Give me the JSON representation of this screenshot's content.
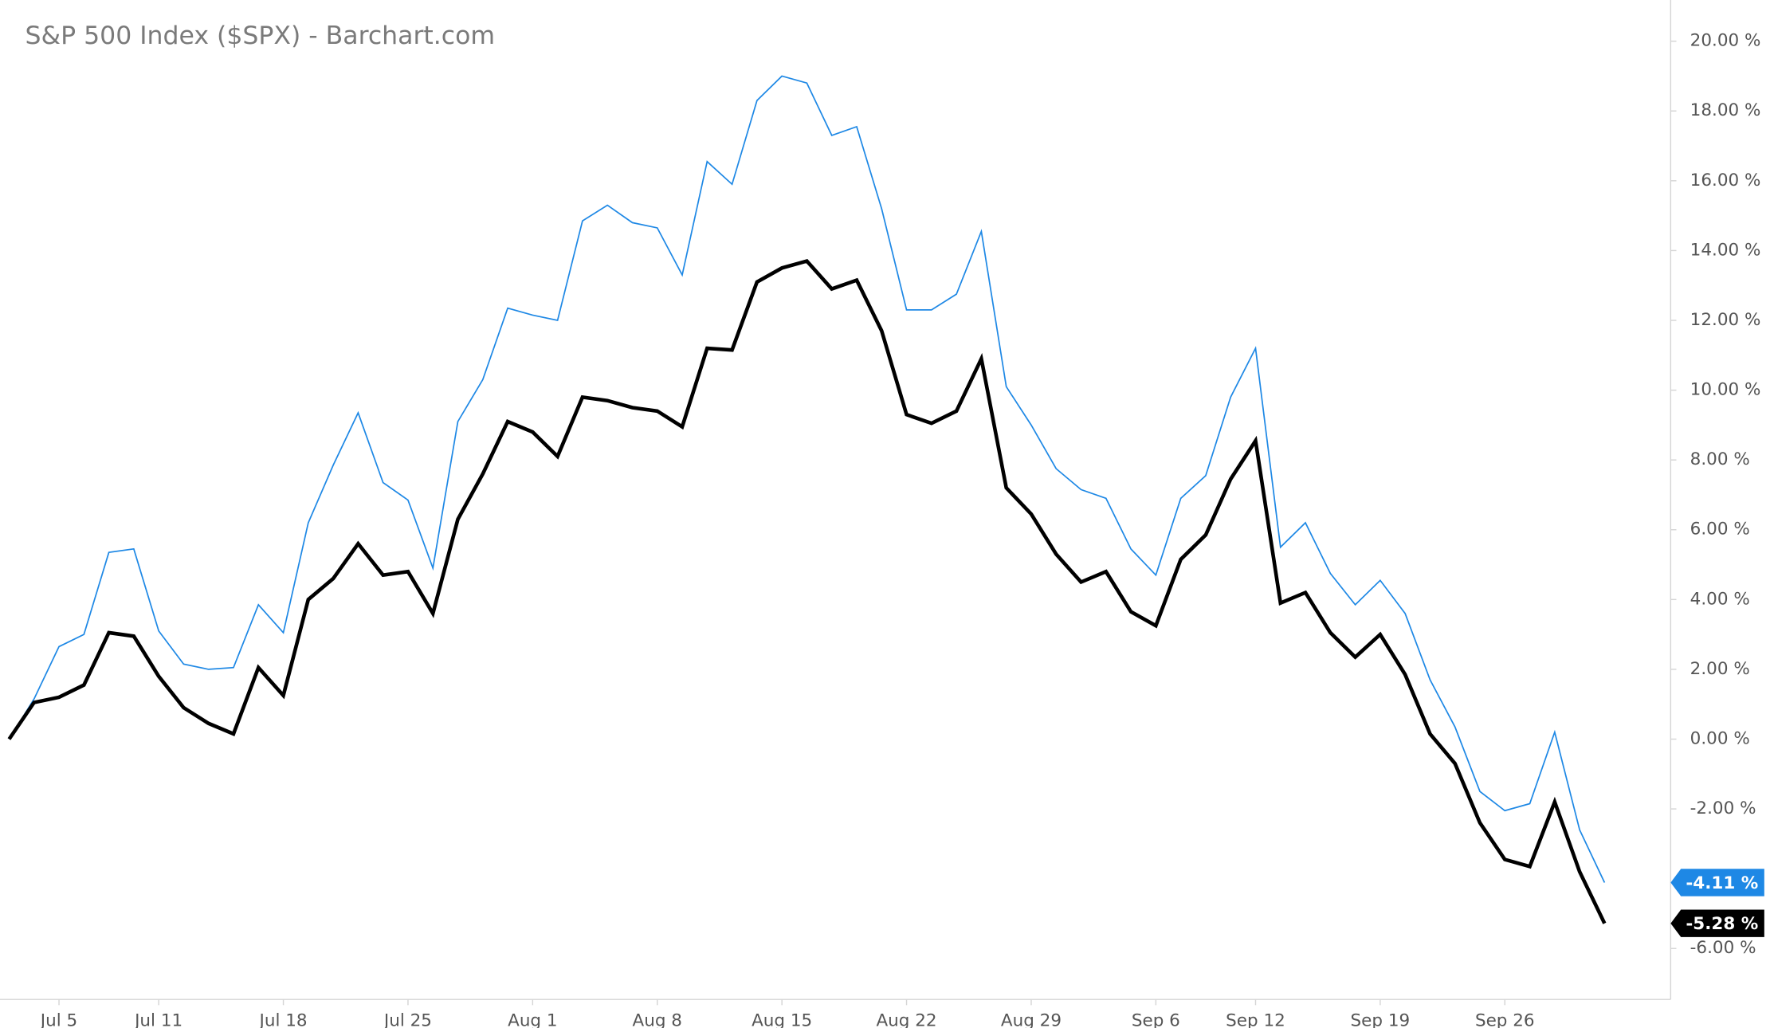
{
  "chart_data": {
    "type": "line",
    "title": "S&P 500 Index ($SPX) - Barchart.com",
    "categories": [
      null,
      null,
      "Jul 5",
      null,
      null,
      null,
      "Jul 11",
      null,
      null,
      null,
      null,
      "Jul 18",
      null,
      null,
      null,
      null,
      "Jul 25",
      null,
      null,
      null,
      null,
      "Aug 1",
      null,
      null,
      null,
      null,
      "Aug 8",
      null,
      null,
      null,
      null,
      "Aug 15",
      null,
      null,
      null,
      null,
      "Aug 22",
      null,
      null,
      null,
      null,
      "Aug 29",
      null,
      null,
      null,
      null,
      "Sep 6",
      null,
      null,
      null,
      "Sep 12",
      null,
      null,
      null,
      null,
      "Sep 19",
      null,
      null,
      null,
      null,
      "Sep 26",
      null,
      null,
      null,
      null
    ],
    "series": [
      {
        "color": "#1e88e5",
        "values": [
          0,
          1.15,
          2.65,
          3.0,
          5.35,
          5.45,
          3.1,
          2.15,
          2.0,
          2.05,
          3.85,
          3.05,
          6.2,
          7.85,
          9.35,
          7.35,
          6.85,
          4.9,
          9.1,
          10.3,
          12.35,
          12.15,
          12.0,
          14.85,
          15.3,
          14.8,
          14.65,
          13.3,
          16.55,
          15.9,
          18.3,
          19.0,
          18.8,
          17.3,
          17.55,
          15.2,
          12.3,
          12.3,
          12.75,
          14.55,
          10.1,
          9.0,
          7.75,
          7.15,
          6.9,
          5.45,
          4.7,
          6.9,
          7.55,
          9.8,
          11.2,
          5.5,
          6.2,
          4.75,
          3.85,
          4.55,
          3.6,
          1.7,
          0.35,
          -1.5,
          -2.05,
          -1.85,
          0.2,
          -2.6,
          -4.11
        ],
        "value_labels": [
          null,
          null,
          null,
          null,
          null,
          null,
          null,
          null,
          null,
          null,
          null,
          null,
          null,
          null,
          null,
          null,
          null,
          null,
          null,
          null,
          null,
          null,
          null,
          null,
          null,
          null,
          null,
          null,
          null,
          null,
          null,
          null,
          null,
          null,
          null,
          null,
          null,
          null,
          null,
          null,
          null,
          null,
          null,
          null,
          null,
          null,
          null,
          null,
          null,
          null,
          null,
          null,
          null,
          null,
          null,
          null,
          null,
          null,
          null,
          null,
          null,
          null,
          null,
          null,
          "-4.11 %"
        ]
      },
      {
        "color": "#000000",
        "values": [
          0,
          1.05,
          1.2,
          1.55,
          3.05,
          2.95,
          1.8,
          0.9,
          0.45,
          0.15,
          2.05,
          1.25,
          4.0,
          4.6,
          5.6,
          4.7,
          4.8,
          3.6,
          6.3,
          7.6,
          9.1,
          8.8,
          8.1,
          9.8,
          9.7,
          9.5,
          9.4,
          8.95,
          11.2,
          11.15,
          13.1,
          13.5,
          13.7,
          12.9,
          13.15,
          11.7,
          9.3,
          9.05,
          9.4,
          10.9,
          7.2,
          6.45,
          5.3,
          4.5,
          4.8,
          3.65,
          3.25,
          5.15,
          5.85,
          7.45,
          8.55,
          3.9,
          4.2,
          3.05,
          2.35,
          3.0,
          1.85,
          0.15,
          -0.7,
          -2.4,
          -3.45,
          -3.65,
          -1.8,
          -3.8,
          -5.28
        ],
        "value_labels": [
          null,
          null,
          null,
          null,
          null,
          null,
          null,
          null,
          null,
          null,
          null,
          null,
          null,
          null,
          null,
          null,
          null,
          null,
          null,
          null,
          null,
          null,
          null,
          null,
          null,
          null,
          null,
          null,
          null,
          null,
          null,
          null,
          null,
          null,
          null,
          null,
          null,
          null,
          null,
          null,
          null,
          null,
          null,
          null,
          null,
          null,
          null,
          null,
          null,
          null,
          null,
          null,
          null,
          null,
          null,
          null,
          null,
          null,
          null,
          null,
          null,
          null,
          null,
          null,
          "-5.28 %"
        ]
      }
    ],
    "ylim": [
      -7.46,
      21.18
    ],
    "yticks": [
      {
        "value": 20,
        "label": "20.00 %"
      },
      {
        "value": 18,
        "label": "18.00 %"
      },
      {
        "value": 16,
        "label": "16.00 %"
      },
      {
        "value": 14,
        "label": "14.00 %"
      },
      {
        "value": 12,
        "label": "12.00 %"
      },
      {
        "value": 10,
        "label": "10.00 %"
      },
      {
        "value": 8,
        "label": "8.00 %"
      },
      {
        "value": 6,
        "label": "6.00 %"
      },
      {
        "value": 4,
        "label": "4.00 %"
      },
      {
        "value": 2,
        "label": "2.00 %"
      },
      {
        "value": 0,
        "label": "0.00 %"
      },
      {
        "value": -2,
        "label": "-2.00 %"
      },
      {
        "value": -6,
        "label": "-6.00 %"
      }
    ]
  }
}
